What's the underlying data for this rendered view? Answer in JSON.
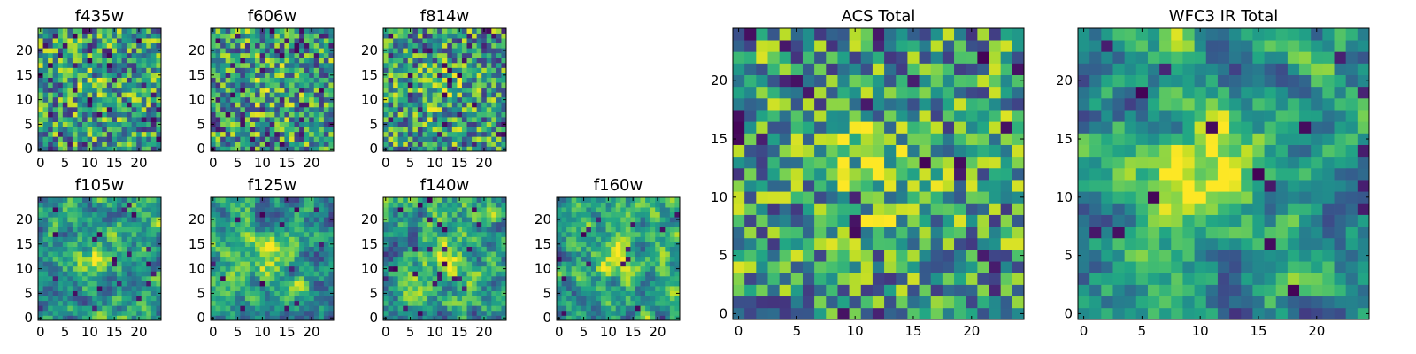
{
  "chart_data": [
    {
      "type": "heatmap",
      "title": "f435w",
      "x_ticks": [
        "0",
        "5",
        "10",
        "15",
        "20"
      ],
      "y_ticks": [
        "0",
        "5",
        "10",
        "15",
        "20"
      ],
      "xlim": [
        -0.5,
        24.5
      ],
      "ylim": [
        -0.5,
        24.5
      ],
      "grid_size": 25,
      "colormap": "viridis",
      "smoothness": 0.05,
      "seed": 11,
      "center_bump": 0.08,
      "outlier_frac": 0.07
    },
    {
      "type": "heatmap",
      "title": "f606w",
      "x_ticks": [
        "0",
        "5",
        "10",
        "15",
        "20"
      ],
      "y_ticks": [
        "0",
        "5",
        "10",
        "15",
        "20"
      ],
      "xlim": [
        -0.5,
        24.5
      ],
      "ylim": [
        -0.5,
        24.5
      ],
      "grid_size": 25,
      "colormap": "viridis",
      "smoothness": 0.05,
      "seed": 23,
      "center_bump": 0.12,
      "outlier_frac": 0.07
    },
    {
      "type": "heatmap",
      "title": "f814w",
      "x_ticks": [
        "0",
        "5",
        "10",
        "15",
        "20"
      ],
      "y_ticks": [
        "0",
        "5",
        "10",
        "15",
        "20"
      ],
      "xlim": [
        -0.5,
        24.5
      ],
      "ylim": [
        -0.5,
        24.5
      ],
      "grid_size": 25,
      "colormap": "viridis",
      "smoothness": 0.08,
      "seed": 37,
      "center_bump": 0.18,
      "outlier_frac": 0.06
    },
    {
      "type": "heatmap",
      "title": "f105w",
      "x_ticks": [
        "0",
        "5",
        "10",
        "15",
        "20"
      ],
      "y_ticks": [
        "0",
        "5",
        "10",
        "15",
        "20"
      ],
      "xlim": [
        -0.5,
        24.5
      ],
      "ylim": [
        -0.5,
        24.5
      ],
      "grid_size": 25,
      "colormap": "viridis",
      "smoothness": 0.45,
      "seed": 41,
      "center_bump": 0.35,
      "outlier_frac": 0.03
    },
    {
      "type": "heatmap",
      "title": "f125w",
      "x_ticks": [
        "0",
        "5",
        "10",
        "15",
        "20"
      ],
      "y_ticks": [
        "0",
        "5",
        "10",
        "15",
        "20"
      ],
      "xlim": [
        -0.5,
        24.5
      ],
      "ylim": [
        -0.5,
        24.5
      ],
      "grid_size": 25,
      "colormap": "viridis",
      "smoothness": 0.45,
      "seed": 53,
      "center_bump": 0.3,
      "outlier_frac": 0.03
    },
    {
      "type": "heatmap",
      "title": "f140w",
      "x_ticks": [
        "0",
        "5",
        "10",
        "15",
        "20"
      ],
      "y_ticks": [
        "0",
        "5",
        "10",
        "15",
        "20"
      ],
      "xlim": [
        -0.5,
        24.5
      ],
      "ylim": [
        -0.5,
        24.5
      ],
      "grid_size": 25,
      "colormap": "viridis",
      "smoothness": 0.45,
      "seed": 67,
      "center_bump": 0.3,
      "outlier_frac": 0.03
    },
    {
      "type": "heatmap",
      "title": "f160w",
      "x_ticks": [
        "0",
        "5",
        "10",
        "15",
        "20"
      ],
      "y_ticks": [
        "0",
        "5",
        "10",
        "15",
        "20"
      ],
      "xlim": [
        -0.5,
        24.5
      ],
      "ylim": [
        -0.5,
        24.5
      ],
      "grid_size": 25,
      "colormap": "viridis",
      "smoothness": 0.45,
      "seed": 79,
      "center_bump": 0.4,
      "outlier_frac": 0.03
    },
    {
      "type": "heatmap",
      "title": "ACS Total",
      "x_ticks": [
        "0",
        "5",
        "10",
        "15",
        "20"
      ],
      "y_ticks": [
        "0",
        "5",
        "10",
        "15",
        "20"
      ],
      "xlim": [
        -0.5,
        24.5
      ],
      "ylim": [
        -0.5,
        24.5
      ],
      "grid_size": 25,
      "colormap": "viridis",
      "smoothness": 0.1,
      "seed": 97,
      "center_bump": 0.25,
      "outlier_frac": 0.05
    },
    {
      "type": "heatmap",
      "title": "WFC3 IR Total",
      "x_ticks": [
        "0",
        "5",
        "10",
        "15",
        "20"
      ],
      "y_ticks": [
        "0",
        "5",
        "10",
        "15",
        "20"
      ],
      "xlim": [
        -0.5,
        24.5
      ],
      "ylim": [
        -0.5,
        24.5
      ],
      "grid_size": 25,
      "colormap": "viridis",
      "smoothness": 0.55,
      "seed": 101,
      "center_bump": 0.55,
      "outlier_frac": 0.03
    }
  ]
}
